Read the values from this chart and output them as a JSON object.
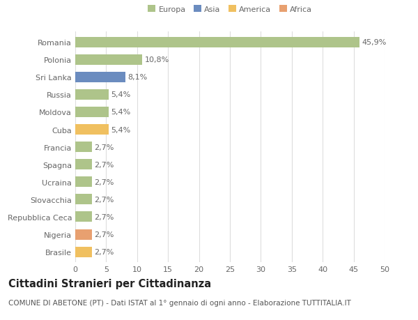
{
  "countries": [
    "Romania",
    "Polonia",
    "Sri Lanka",
    "Russia",
    "Moldova",
    "Cuba",
    "Francia",
    "Spagna",
    "Ucraina",
    "Slovacchia",
    "Repubblica Ceca",
    "Nigeria",
    "Brasile"
  ],
  "values": [
    45.9,
    10.8,
    8.1,
    5.4,
    5.4,
    5.4,
    2.7,
    2.7,
    2.7,
    2.7,
    2.7,
    2.7,
    2.7
  ],
  "labels": [
    "45,9%",
    "10,8%",
    "8,1%",
    "5,4%",
    "5,4%",
    "5,4%",
    "2,7%",
    "2,7%",
    "2,7%",
    "2,7%",
    "2,7%",
    "2,7%",
    "2,7%"
  ],
  "colors": [
    "#aec48a",
    "#aec48a",
    "#6b8cbf",
    "#aec48a",
    "#aec48a",
    "#f0c060",
    "#aec48a",
    "#aec48a",
    "#aec48a",
    "#aec48a",
    "#aec48a",
    "#e8a070",
    "#f0c060"
  ],
  "legend_labels": [
    "Europa",
    "Asia",
    "America",
    "Africa"
  ],
  "legend_colors": [
    "#aec48a",
    "#6b8cbf",
    "#f0c060",
    "#e8a070"
  ],
  "title": "Cittadini Stranieri per Cittadinanza",
  "subtitle": "COMUNE DI ABETONE (PT) - Dati ISTAT al 1° gennaio di ogni anno - Elaborazione TUTTITALIA.IT",
  "xlim": [
    0,
    50
  ],
  "xticks": [
    0,
    5,
    10,
    15,
    20,
    25,
    30,
    35,
    40,
    45,
    50
  ],
  "background_color": "#ffffff",
  "grid_color": "#dddddd",
  "bar_height": 0.6,
  "label_fontsize": 8.0,
  "tick_fontsize": 8.0,
  "title_fontsize": 10.5,
  "subtitle_fontsize": 7.5
}
